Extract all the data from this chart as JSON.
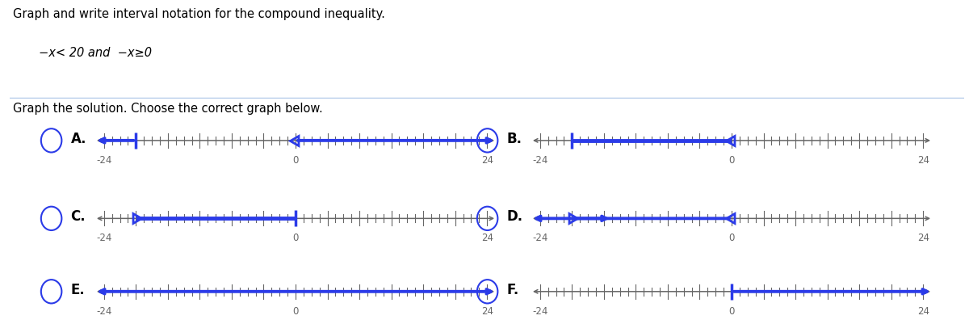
{
  "title_line1": "Graph and write interval notation for the compound inequality.",
  "title_line2": "−x< 20 and  −x≥0",
  "subtitle": "Graph the solution. Choose the correct graph below.",
  "line_color_blue": "#2B3BE8",
  "line_color_gray": "#666666",
  "axis_min": -24,
  "axis_max": 24,
  "graphs": [
    {
      "label": "A.",
      "row": 0,
      "col": 0,
      "type": "two_rays",
      "left_ray": {
        "from": -20,
        "bracket": "closed"
      },
      "right_ray": {
        "from": 0,
        "bracket": "open"
      }
    },
    {
      "label": "B.",
      "row": 0,
      "col": 1,
      "type": "segment",
      "segment": {
        "from": -20,
        "to": 0,
        "left_bracket": "closed",
        "right_bracket": "open"
      }
    },
    {
      "label": "C.",
      "row": 1,
      "col": 0,
      "type": "segment",
      "segment": {
        "from": -20,
        "to": 0,
        "left_bracket": "open",
        "right_bracket": "closed"
      }
    },
    {
      "label": "D.",
      "row": 1,
      "col": 1,
      "type": "two_rays_short",
      "left_ray": {
        "from": 0,
        "bracket": "open"
      },
      "right_ray": {
        "from": -20,
        "bracket": "open"
      }
    },
    {
      "label": "E.",
      "row": 2,
      "col": 0,
      "type": "full_line"
    },
    {
      "label": "F.",
      "row": 2,
      "col": 1,
      "type": "right_ray",
      "right_ray": {
        "from": 0,
        "bracket": "closed"
      }
    }
  ],
  "background": "#ffffff",
  "label_fontsize": 12,
  "tick_fontsize": 8.5
}
